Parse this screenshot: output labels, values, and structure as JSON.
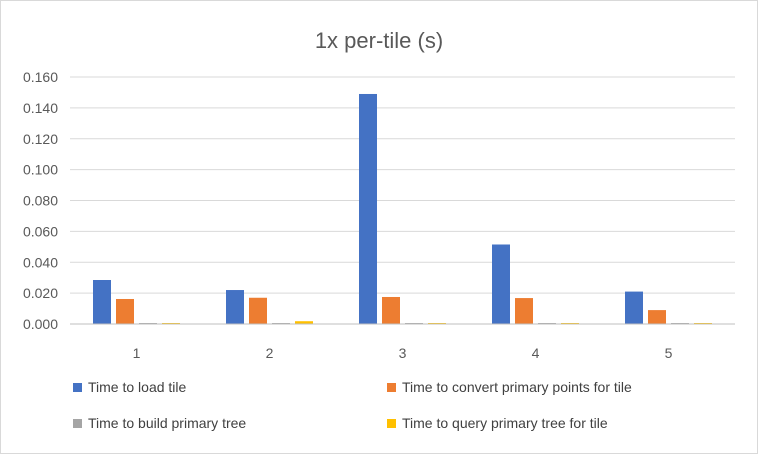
{
  "chart_data": {
    "type": "bar",
    "title": "1x per-tile (s)",
    "xlabel": "",
    "ylabel": "",
    "categories": [
      "1",
      "2",
      "3",
      "4",
      "5"
    ],
    "ylim": [
      0,
      0.16
    ],
    "yticks": [
      "0.000",
      "0.020",
      "0.040",
      "0.060",
      "0.080",
      "0.100",
      "0.120",
      "0.140",
      "0.160"
    ],
    "grid": true,
    "legend_position": "bottom",
    "series": [
      {
        "name": "Time to load tile",
        "color": "#4472C4",
        "values": [
          0.0285,
          0.022,
          0.149,
          0.0515,
          0.021
        ]
      },
      {
        "name": "Time to convert primary points for tile",
        "color": "#ED7D31",
        "values": [
          0.0162,
          0.017,
          0.0175,
          0.0168,
          0.009
        ]
      },
      {
        "name": "Time to build primary tree",
        "color": "#A5A5A5",
        "values": [
          0.0003,
          0.0003,
          0.0003,
          0.0003,
          0.0003
        ]
      },
      {
        "name": "Time to query primary tree for tile",
        "color": "#FFC000",
        "values": [
          0.0003,
          0.0018,
          0.0003,
          0.0003,
          0.0003
        ]
      }
    ]
  }
}
